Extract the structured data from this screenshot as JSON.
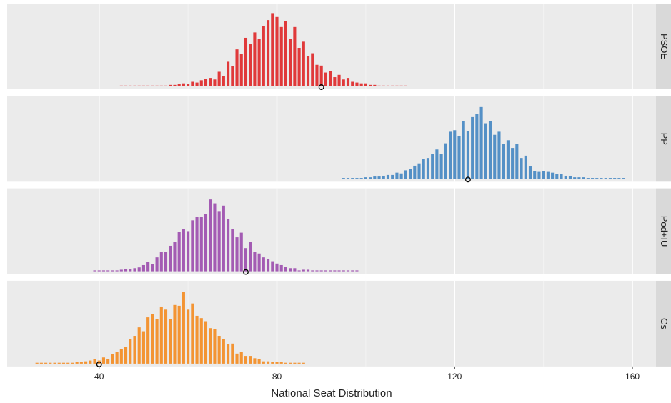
{
  "chart_data": {
    "type": "bar",
    "xlabel": "National Seat Distribution",
    "xlim": [
      19.3,
      165.3
    ],
    "xticks": [
      40,
      80,
      120,
      160
    ],
    "xminor": [
      60,
      100,
      140
    ],
    "ylim": [
      0,
      100
    ],
    "grid": true,
    "facets": [
      {
        "name": "PSOE",
        "color": "#e0393a",
        "marker": 90,
        "x": [
          45,
          46,
          47,
          48,
          49,
          50,
          51,
          52,
          53,
          54,
          55,
          56,
          57,
          58,
          59,
          60,
          61,
          62,
          63,
          64,
          65,
          66,
          67,
          68,
          69,
          70,
          71,
          72,
          73,
          74,
          75,
          76,
          77,
          78,
          79,
          80,
          81,
          82,
          83,
          84,
          85,
          86,
          87,
          88,
          89,
          90,
          91,
          92,
          93,
          94,
          95,
          96,
          97,
          98,
          99,
          100,
          101,
          102,
          103,
          104,
          105,
          106,
          107,
          108,
          109
        ],
        "values": [
          1,
          0,
          1,
          0,
          1,
          0,
          0,
          0,
          0,
          1,
          1,
          2,
          2,
          3,
          4,
          3,
          6,
          5,
          8,
          10,
          11,
          9,
          19,
          13,
          32,
          26,
          48,
          42,
          63,
          55,
          70,
          62,
          78,
          86,
          95,
          90,
          77,
          85,
          62,
          77,
          50,
          58,
          39,
          43,
          28,
          27,
          18,
          20,
          12,
          15,
          9,
          11,
          6,
          5,
          4,
          4,
          2,
          2,
          1,
          1,
          1,
          1,
          1,
          1,
          1
        ]
      },
      {
        "name": "PP",
        "color": "#5490c6",
        "marker": 123,
        "x": [
          95,
          96,
          97,
          98,
          99,
          100,
          101,
          102,
          103,
          104,
          105,
          106,
          107,
          108,
          109,
          110,
          111,
          112,
          113,
          114,
          115,
          116,
          117,
          118,
          119,
          120,
          121,
          122,
          123,
          124,
          125,
          126,
          127,
          128,
          129,
          130,
          131,
          132,
          133,
          134,
          135,
          136,
          137,
          138,
          139,
          140,
          141,
          142,
          143,
          144,
          145,
          146,
          147,
          148,
          149,
          150,
          151,
          152,
          153,
          154,
          155,
          156,
          157,
          158
        ],
        "values": [
          1,
          1,
          1,
          1,
          1,
          2,
          2,
          3,
          3,
          4,
          5,
          5,
          8,
          7,
          11,
          13,
          17,
          20,
          26,
          27,
          32,
          38,
          32,
          46,
          61,
          63,
          55,
          75,
          62,
          80,
          84,
          93,
          72,
          75,
          57,
          61,
          45,
          50,
          40,
          45,
          27,
          30,
          16,
          10,
          9,
          10,
          9,
          8,
          6,
          6,
          4,
          4,
          2,
          2,
          2,
          1,
          1,
          1,
          1,
          1,
          1,
          1,
          1,
          1
        ]
      },
      {
        "name": "Pod+IU",
        "color": "#a35bb3",
        "marker": 73,
        "x": [
          39,
          40,
          41,
          42,
          43,
          44,
          45,
          46,
          47,
          48,
          49,
          50,
          51,
          52,
          53,
          54,
          55,
          56,
          57,
          58,
          59,
          60,
          61,
          62,
          63,
          64,
          65,
          66,
          67,
          68,
          69,
          70,
          71,
          72,
          73,
          74,
          75,
          76,
          77,
          78,
          79,
          80,
          81,
          82,
          83,
          84,
          85,
          86,
          87,
          88,
          89,
          90,
          91,
          92,
          93,
          94,
          95,
          96,
          97,
          98
        ],
        "values": [
          1,
          0,
          1,
          0,
          1,
          1,
          2,
          3,
          3,
          4,
          5,
          8,
          12,
          9,
          18,
          25,
          25,
          33,
          38,
          51,
          55,
          52,
          66,
          70,
          70,
          74,
          93,
          88,
          78,
          85,
          68,
          55,
          44,
          50,
          30,
          38,
          25,
          23,
          18,
          16,
          13,
          10,
          8,
          6,
          4,
          4,
          1,
          2,
          2,
          1,
          1,
          1,
          0,
          1,
          1,
          0,
          0,
          0,
          0,
          1
        ]
      },
      {
        "name": "Cs",
        "color": "#f39433",
        "marker": 40,
        "x": [
          26,
          27,
          28,
          29,
          30,
          31,
          32,
          33,
          34,
          35,
          36,
          37,
          38,
          39,
          40,
          41,
          42,
          43,
          44,
          45,
          46,
          47,
          48,
          49,
          50,
          51,
          52,
          53,
          54,
          55,
          56,
          57,
          58,
          59,
          60,
          61,
          62,
          63,
          64,
          65,
          66,
          67,
          68,
          69,
          70,
          71,
          72,
          73,
          74,
          75,
          76,
          77,
          78,
          79,
          80,
          81,
          82,
          83,
          84,
          85,
          86
        ],
        "values": [
          1,
          0,
          1,
          1,
          0,
          1,
          1,
          1,
          1,
          2,
          2,
          3,
          4,
          6,
          4,
          8,
          6,
          12,
          15,
          19,
          22,
          32,
          36,
          47,
          42,
          60,
          64,
          58,
          74,
          70,
          58,
          76,
          75,
          93,
          70,
          78,
          62,
          59,
          55,
          46,
          45,
          36,
          32,
          25,
          26,
          13,
          15,
          10,
          10,
          7,
          6,
          3,
          3,
          2,
          2,
          2,
          1,
          1,
          1,
          1,
          1
        ]
      }
    ]
  }
}
